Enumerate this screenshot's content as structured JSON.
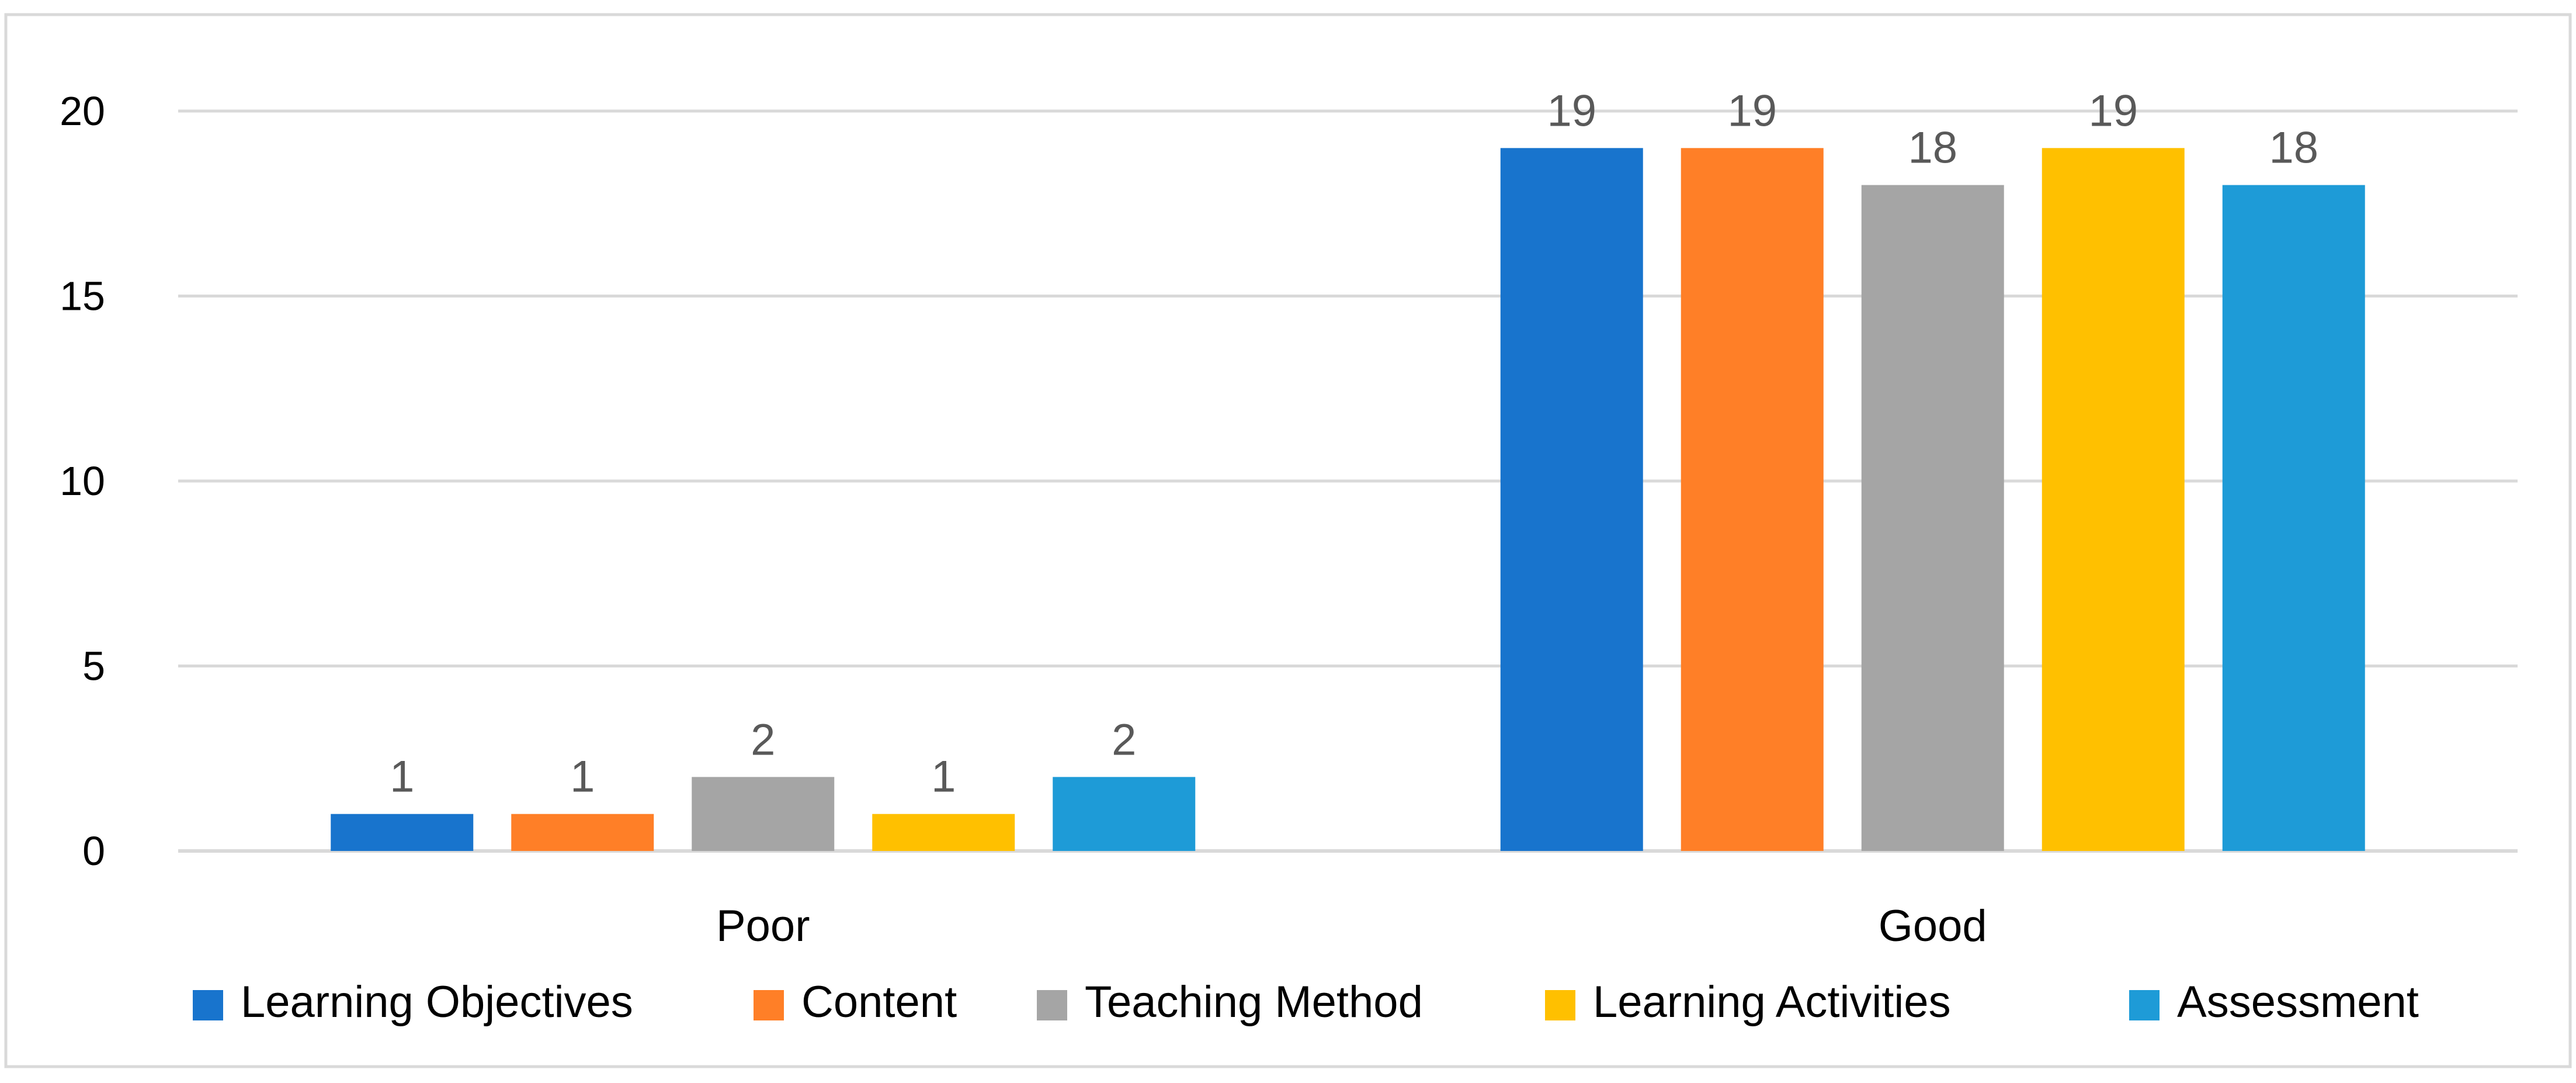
{
  "chart_data": {
    "type": "bar",
    "title": "",
    "xlabel": "",
    "ylabel": "",
    "categories": [
      "Poor",
      "Good"
    ],
    "ylim": [
      0,
      20
    ],
    "yticks": [
      0,
      5,
      10,
      15,
      20
    ],
    "grid": true,
    "legend_position": "bottom",
    "series": [
      {
        "name": "Learning Objectives",
        "color": "#1874CD",
        "values": [
          1,
          19
        ]
      },
      {
        "name": "Content",
        "color": "#FF7F27",
        "values": [
          1,
          19
        ]
      },
      {
        "name": "Teaching Method",
        "color": "#A5A5A5",
        "values": [
          2,
          18
        ]
      },
      {
        "name": "Learning Activities",
        "color": "#FFC000",
        "values": [
          1,
          19
        ]
      },
      {
        "name": "Assessment",
        "color": "#1E9BD7",
        "values": [
          2,
          18
        ]
      }
    ]
  }
}
